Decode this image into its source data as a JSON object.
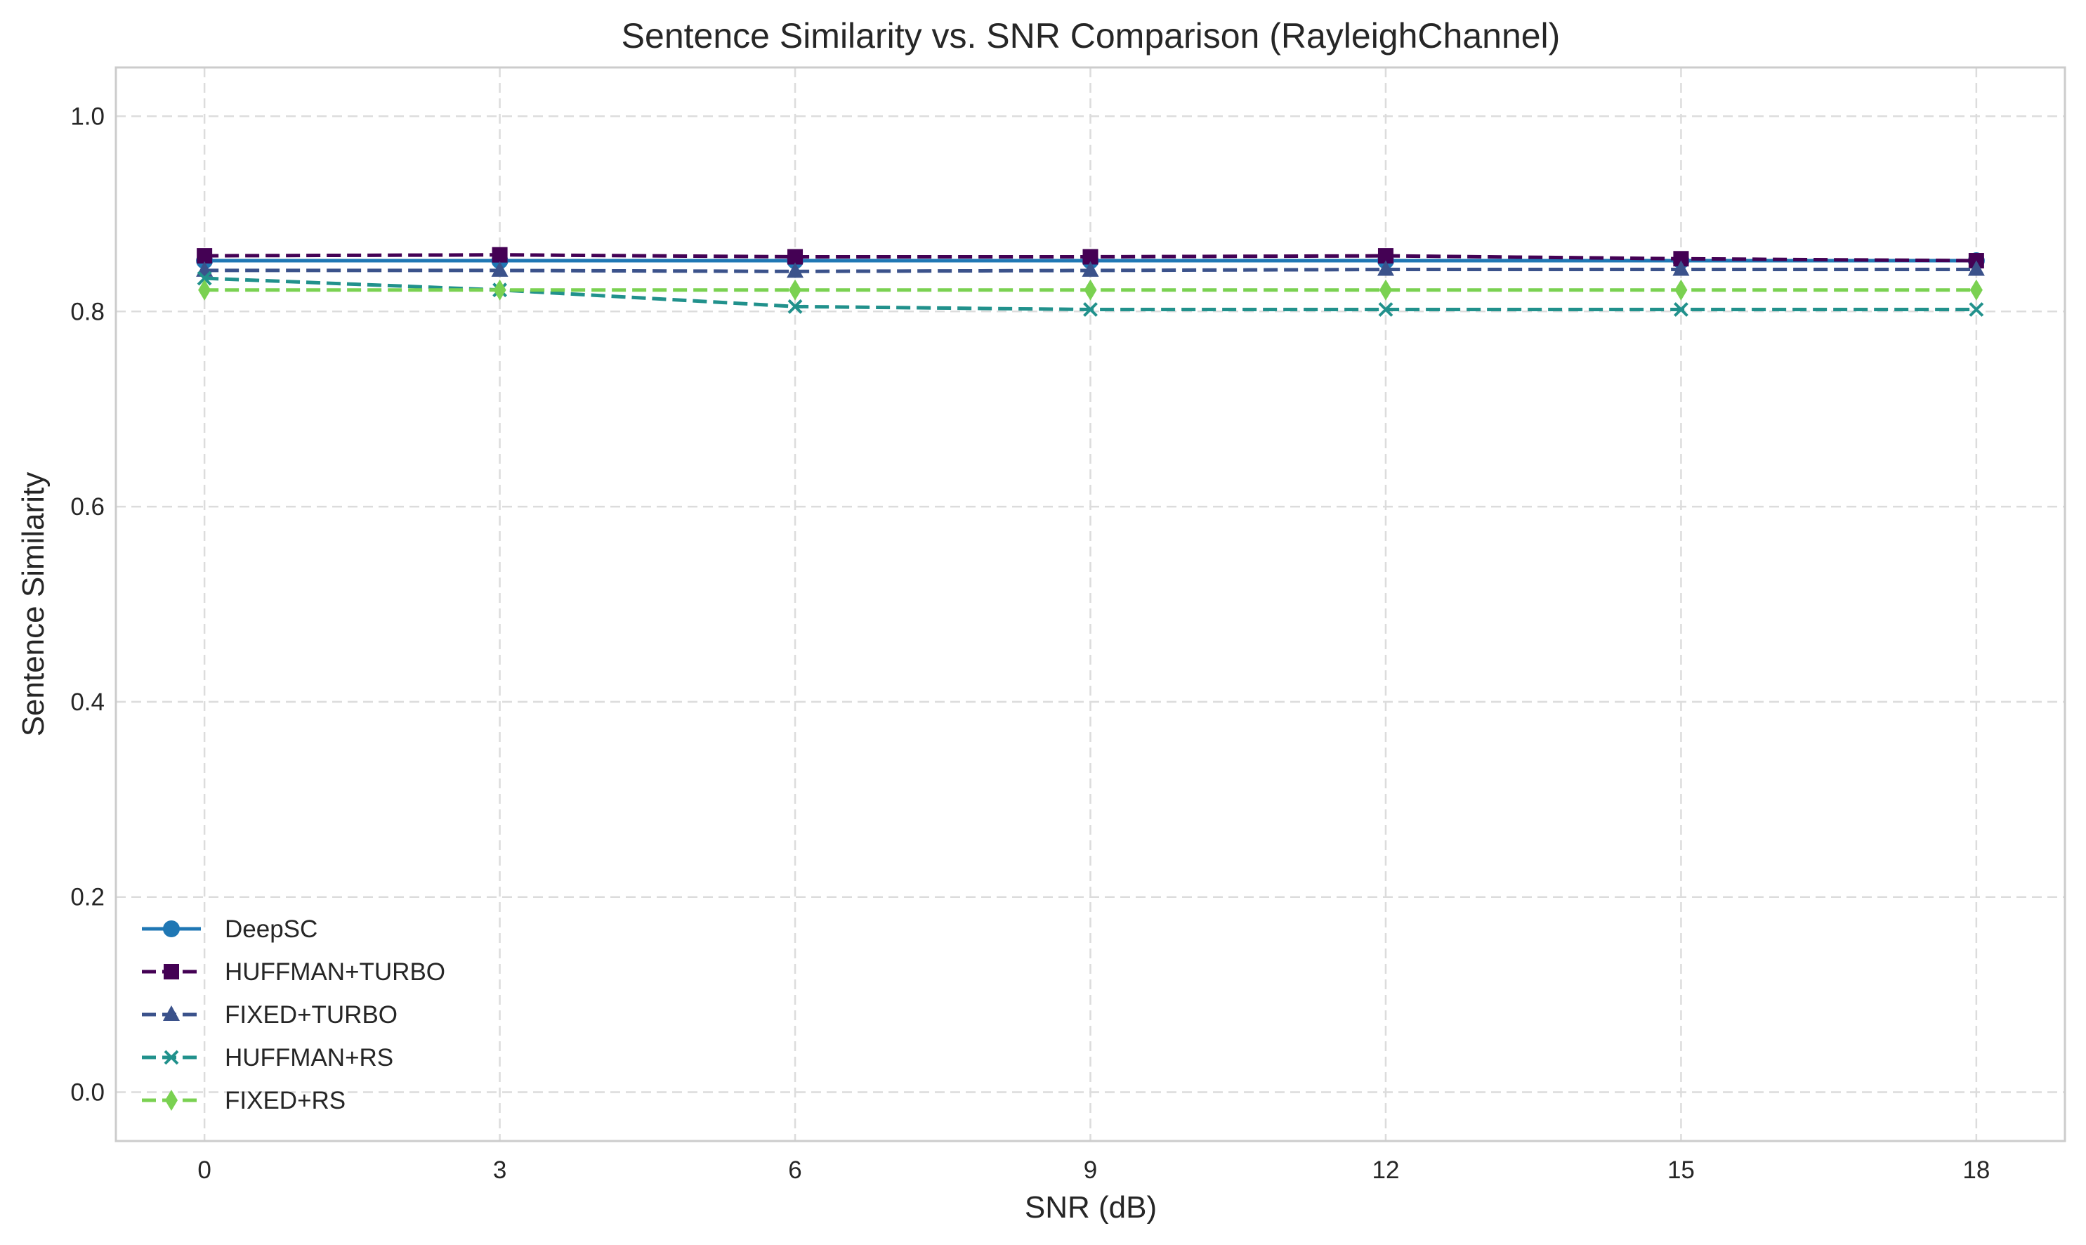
{
  "chart_data": {
    "type": "line",
    "title": "Sentence Similarity vs. SNR Comparison (RayleighChannel)",
    "xlabel": "SNR (dB)",
    "ylabel": "Sentence Similarity",
    "x": [
      0,
      3,
      6,
      9,
      12,
      15,
      18
    ],
    "xlim": [
      -0.9,
      18.9
    ],
    "ylim": [
      -0.05,
      1.05
    ],
    "xticks": [
      0,
      3,
      6,
      9,
      12,
      15,
      18
    ],
    "yticks": [
      0.0,
      0.2,
      0.4,
      0.6,
      0.8,
      1.0
    ],
    "grid": true,
    "legend_position": "lower-left",
    "series": [
      {
        "name": "DeepSC",
        "color": "#1f77b4",
        "marker": "circle",
        "linestyle": "solid",
        "values": [
          0.852,
          0.852,
          0.852,
          0.852,
          0.852,
          0.852,
          0.852
        ]
      },
      {
        "name": "HUFFMAN+TURBO",
        "color": "#440154",
        "marker": "square",
        "linestyle": "dashed",
        "values": [
          0.857,
          0.858,
          0.856,
          0.856,
          0.857,
          0.854,
          0.852
        ]
      },
      {
        "name": "FIXED+TURBO",
        "color": "#3b528b",
        "marker": "triangle",
        "linestyle": "dashed",
        "values": [
          0.842,
          0.842,
          0.841,
          0.842,
          0.843,
          0.843,
          0.843
        ]
      },
      {
        "name": "HUFFMAN+RS",
        "color": "#21918c",
        "marker": "x",
        "linestyle": "dashed",
        "values": [
          0.834,
          0.822,
          0.805,
          0.802,
          0.802,
          0.802,
          0.802
        ]
      },
      {
        "name": "FIXED+RS",
        "color": "#7ad151",
        "marker": "diamond",
        "linestyle": "dashed",
        "values": [
          0.822,
          0.822,
          0.822,
          0.822,
          0.822,
          0.822,
          0.822
        ]
      }
    ]
  }
}
